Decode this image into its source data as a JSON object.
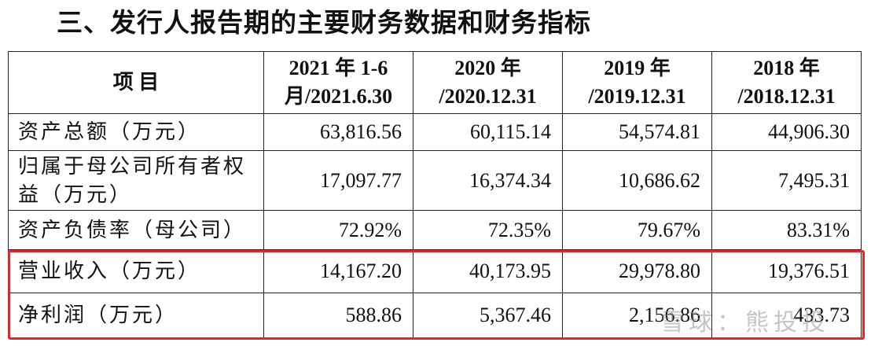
{
  "header": {
    "title": "三、发行人报告期的主要财务数据和财务指标"
  },
  "table": {
    "columns": [
      [
        "项 目"
      ],
      [
        "2021 年 1-6",
        "月/2021.6.30"
      ],
      [
        "2020 年",
        "/2020.12.31"
      ],
      [
        "2019 年",
        "/2019.12.31"
      ],
      [
        "2018 年",
        "/2018.12.31"
      ]
    ],
    "rows": [
      [
        [
          "资产总额（万元）"
        ],
        "63,816.56",
        "60,115.14",
        "54,574.81",
        "44,906.30"
      ],
      [
        [
          "归属于母公司所有者权",
          "益（万元）"
        ],
        "17,097.77",
        "16,374.34",
        "10,686.62",
        "7,495.31"
      ],
      [
        [
          "资产负债率（母公司）"
        ],
        "72.92%",
        "72.35%",
        "79.67%",
        "83.31%"
      ],
      [
        [
          "营业收入（万元）"
        ],
        "14,167.20",
        "40,173.95",
        "29,978.80",
        "19,376.51"
      ],
      [
        [
          "净利润（万元）"
        ],
        "588.86",
        "5,367.46",
        "2,156.86",
        "433.73"
      ]
    ]
  },
  "watermark": "雪球：熊投投"
}
